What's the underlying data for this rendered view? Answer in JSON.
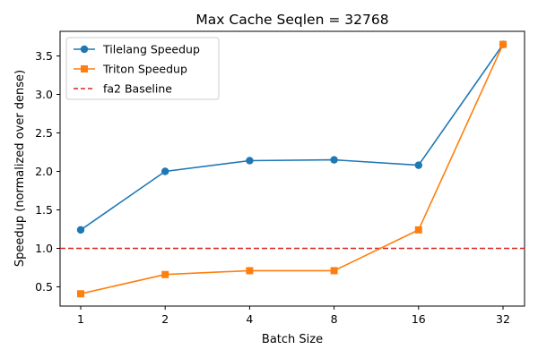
{
  "chart_data": {
    "type": "line",
    "title": "Max Cache Seqlen = 32768",
    "xlabel": "Batch Size",
    "ylabel": "Speedup (normalized over dense)",
    "categories": [
      "1",
      "2",
      "4",
      "8",
      "16",
      "32"
    ],
    "ylim": [
      0.25,
      3.82
    ],
    "yticks": [
      0.5,
      1.0,
      1.5,
      2.0,
      2.5,
      3.0,
      3.5
    ],
    "ytick_labels": [
      "0.5",
      "1.0",
      "1.5",
      "2.0",
      "2.5",
      "3.0",
      "3.5"
    ],
    "grid": false,
    "legend_position": "top-left",
    "series": [
      {
        "name": "Tilelang Speedup",
        "values": [
          1.24,
          2.0,
          2.14,
          2.15,
          2.08,
          3.65
        ],
        "color": "#1f77b4",
        "marker": "circle"
      },
      {
        "name": "Triton Speedup",
        "values": [
          0.41,
          0.66,
          0.71,
          0.71,
          1.24,
          3.65
        ],
        "color": "#ff7f0e",
        "marker": "square"
      }
    ],
    "baseline": {
      "name": "fa2 Baseline",
      "value": 1.0,
      "color": "#d62728",
      "style": "dashed"
    }
  }
}
